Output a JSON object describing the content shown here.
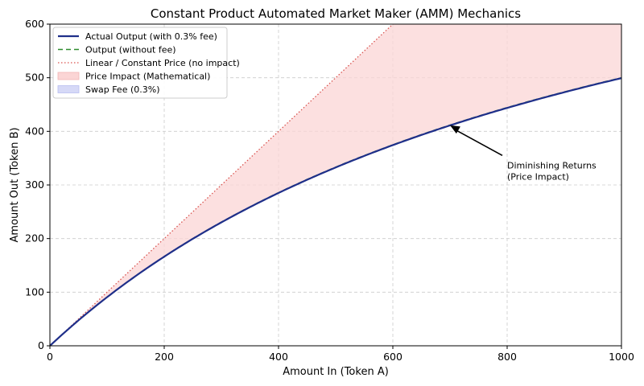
{
  "chart_data": {
    "type": "line",
    "title": "Constant Product Automated Market Maker (AMM) Mechanics",
    "xlabel": "Amount In (Token A)",
    "ylabel": "Amount Out (Token B)",
    "xlim": [
      0,
      1000
    ],
    "ylim": [
      0,
      600
    ],
    "xticks": [
      0,
      200,
      400,
      600,
      800,
      1000
    ],
    "yticks": [
      0,
      100,
      200,
      300,
      400,
      500,
      600
    ],
    "grid": true,
    "legend_position": "top-left",
    "reserves": {
      "x": 1000,
      "y": 1000
    },
    "fee": 0.003,
    "series": [
      {
        "name": "Actual Output (with 0.3% fee)",
        "style": "solid",
        "color": "#1f2f8a",
        "x": [
          0,
          100,
          200,
          300,
          400,
          500,
          600,
          700,
          800,
          900,
          1000
        ],
        "values": [
          0,
          90.7,
          166.3,
          230.4,
          285.3,
          332.9,
          374.6,
          411.4,
          444.2,
          473.5,
          499.8
        ]
      },
      {
        "name": "Output (without fee)",
        "style": "dashed",
        "color": "#2e8b2e",
        "x": [
          0,
          100,
          200,
          300,
          400,
          500,
          600,
          700,
          800,
          900,
          1000
        ],
        "values": [
          0,
          90.9,
          166.7,
          230.8,
          285.7,
          333.3,
          375.0,
          411.8,
          444.4,
          473.7,
          500.0
        ]
      },
      {
        "name": "Linear / Constant Price (no impact)",
        "style": "dotted",
        "color": "#d9534f",
        "x": [
          0,
          600
        ],
        "values": [
          0,
          600
        ]
      }
    ],
    "areas": [
      {
        "name": "Price Impact (Mathematical)",
        "color": "#fbd5d5",
        "between": [
          "Linear / Constant Price (no impact)",
          "Output (without fee)"
        ]
      },
      {
        "name": "Swap Fee (0.3%)",
        "color": "#d6d9f7",
        "between": [
          "Output (without fee)",
          "Actual Output (with 0.3% fee)"
        ]
      }
    ],
    "annotations": [
      {
        "text_lines": [
          "Diminishing Returns",
          "(Price Impact)"
        ],
        "point": [
          700,
          411.4
        ],
        "text_at": [
          800,
          325
        ]
      }
    ]
  }
}
